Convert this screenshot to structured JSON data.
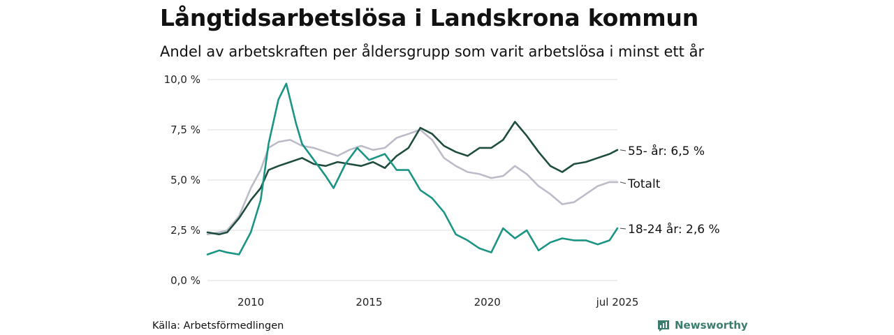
{
  "header": {
    "title": "Långtidsarbetslösa i Landskrona kommun",
    "subtitle": "Andel av arbetskraften per åldersgrupp som varit arbetslösa i minst ett år"
  },
  "footer": {
    "source": "Källa: Arbetsförmedlingen",
    "brand": "Newsworthy",
    "brand_icon": "newsworthy-logo-icon"
  },
  "chart_data": {
    "type": "line",
    "title": "Långtidsarbetslösa i Landskrona kommun",
    "subtitle": "Andel av arbetskraften per åldersgrupp som varit arbetslösa i minst ett år",
    "xlabel": "",
    "ylabel": "",
    "x_range": [
      "2008-03",
      "2025-07"
    ],
    "x_ticks": [
      "2010",
      "2015",
      "2020",
      "jul 2025"
    ],
    "x_tick_dates": [
      "2010-01",
      "2015-01",
      "2020-01",
      "2025-07"
    ],
    "ylim": [
      0,
      10
    ],
    "y_ticks": [
      "0,0 %",
      "2,5 %",
      "5,0 %",
      "7,5 %",
      "10,0 %"
    ],
    "y_tick_values": [
      0,
      2.5,
      5,
      7.5,
      10
    ],
    "grid": "horizontal",
    "legend": "end-labels-right",
    "series": [
      {
        "name": "55- år",
        "end_label": "55- år: 6,5 %",
        "color": "#1e4d3f",
        "points": [
          [
            "2008-03",
            2.4
          ],
          [
            "2008-09",
            2.3
          ],
          [
            "2009-01",
            2.4
          ],
          [
            "2009-07",
            3.1
          ],
          [
            "2010-01",
            4.0
          ],
          [
            "2010-06",
            4.6
          ],
          [
            "2010-10",
            5.5
          ],
          [
            "2011-03",
            5.7
          ],
          [
            "2011-09",
            5.9
          ],
          [
            "2012-03",
            6.1
          ],
          [
            "2012-09",
            5.8
          ],
          [
            "2013-03",
            5.7
          ],
          [
            "2013-09",
            5.9
          ],
          [
            "2014-03",
            5.8
          ],
          [
            "2014-09",
            5.7
          ],
          [
            "2015-03",
            5.9
          ],
          [
            "2015-09",
            5.6
          ],
          [
            "2016-03",
            6.2
          ],
          [
            "2016-09",
            6.6
          ],
          [
            "2017-03",
            7.6
          ],
          [
            "2017-09",
            7.3
          ],
          [
            "2018-03",
            6.7
          ],
          [
            "2018-09",
            6.4
          ],
          [
            "2019-03",
            6.2
          ],
          [
            "2019-09",
            6.6
          ],
          [
            "2020-03",
            6.6
          ],
          [
            "2020-09",
            7.0
          ],
          [
            "2021-03",
            7.9
          ],
          [
            "2021-09",
            7.2
          ],
          [
            "2022-03",
            6.4
          ],
          [
            "2022-09",
            5.7
          ],
          [
            "2023-03",
            5.4
          ],
          [
            "2023-09",
            5.8
          ],
          [
            "2024-03",
            5.9
          ],
          [
            "2024-09",
            6.1
          ],
          [
            "2025-03",
            6.3
          ],
          [
            "2025-07",
            6.5
          ]
        ]
      },
      {
        "name": "Totalt",
        "end_label": "Totalt",
        "color": "#bcbcc8",
        "points": [
          [
            "2008-03",
            2.3
          ],
          [
            "2008-09",
            2.4
          ],
          [
            "2009-01",
            2.5
          ],
          [
            "2009-07",
            3.2
          ],
          [
            "2010-01",
            4.6
          ],
          [
            "2010-06",
            5.5
          ],
          [
            "2010-10",
            6.6
          ],
          [
            "2011-03",
            6.9
          ],
          [
            "2011-09",
            7.0
          ],
          [
            "2012-03",
            6.7
          ],
          [
            "2012-09",
            6.6
          ],
          [
            "2013-03",
            6.4
          ],
          [
            "2013-09",
            6.2
          ],
          [
            "2014-03",
            6.5
          ],
          [
            "2014-09",
            6.7
          ],
          [
            "2015-03",
            6.5
          ],
          [
            "2015-09",
            6.6
          ],
          [
            "2016-03",
            7.1
          ],
          [
            "2016-09",
            7.3
          ],
          [
            "2017-03",
            7.5
          ],
          [
            "2017-09",
            7.0
          ],
          [
            "2018-03",
            6.1
          ],
          [
            "2018-09",
            5.7
          ],
          [
            "2019-03",
            5.4
          ],
          [
            "2019-09",
            5.3
          ],
          [
            "2020-03",
            5.1
          ],
          [
            "2020-09",
            5.2
          ],
          [
            "2021-03",
            5.7
          ],
          [
            "2021-09",
            5.3
          ],
          [
            "2022-03",
            4.7
          ],
          [
            "2022-09",
            4.3
          ],
          [
            "2023-03",
            3.8
          ],
          [
            "2023-09",
            3.9
          ],
          [
            "2024-03",
            4.3
          ],
          [
            "2024-09",
            4.7
          ],
          [
            "2025-03",
            4.9
          ],
          [
            "2025-07",
            4.9
          ]
        ]
      },
      {
        "name": "18-24 år",
        "end_label": "18-24 år: 2,6 %",
        "color": "#1a9483",
        "points": [
          [
            "2008-03",
            1.3
          ],
          [
            "2008-09",
            1.5
          ],
          [
            "2009-01",
            1.4
          ],
          [
            "2009-07",
            1.3
          ],
          [
            "2010-01",
            2.4
          ],
          [
            "2010-06",
            4.0
          ],
          [
            "2010-10",
            6.8
          ],
          [
            "2011-03",
            9.0
          ],
          [
            "2011-07",
            9.8
          ],
          [
            "2011-12",
            7.8
          ],
          [
            "2012-03",
            6.8
          ],
          [
            "2012-09",
            6.0
          ],
          [
            "2013-03",
            5.2
          ],
          [
            "2013-07",
            4.6
          ],
          [
            "2014-01",
            5.8
          ],
          [
            "2014-07",
            6.6
          ],
          [
            "2015-01",
            6.0
          ],
          [
            "2015-09",
            6.3
          ],
          [
            "2016-03",
            5.5
          ],
          [
            "2016-09",
            5.5
          ],
          [
            "2017-03",
            4.5
          ],
          [
            "2017-09",
            4.1
          ],
          [
            "2018-03",
            3.4
          ],
          [
            "2018-09",
            2.3
          ],
          [
            "2019-03",
            2.0
          ],
          [
            "2019-09",
            1.6
          ],
          [
            "2020-03",
            1.4
          ],
          [
            "2020-09",
            2.6
          ],
          [
            "2021-03",
            2.1
          ],
          [
            "2021-09",
            2.5
          ],
          [
            "2022-03",
            1.5
          ],
          [
            "2022-09",
            1.9
          ],
          [
            "2023-03",
            2.1
          ],
          [
            "2023-09",
            2.0
          ],
          [
            "2024-03",
            2.0
          ],
          [
            "2024-09",
            1.8
          ],
          [
            "2025-03",
            2.0
          ],
          [
            "2025-07",
            2.6
          ]
        ]
      }
    ]
  }
}
